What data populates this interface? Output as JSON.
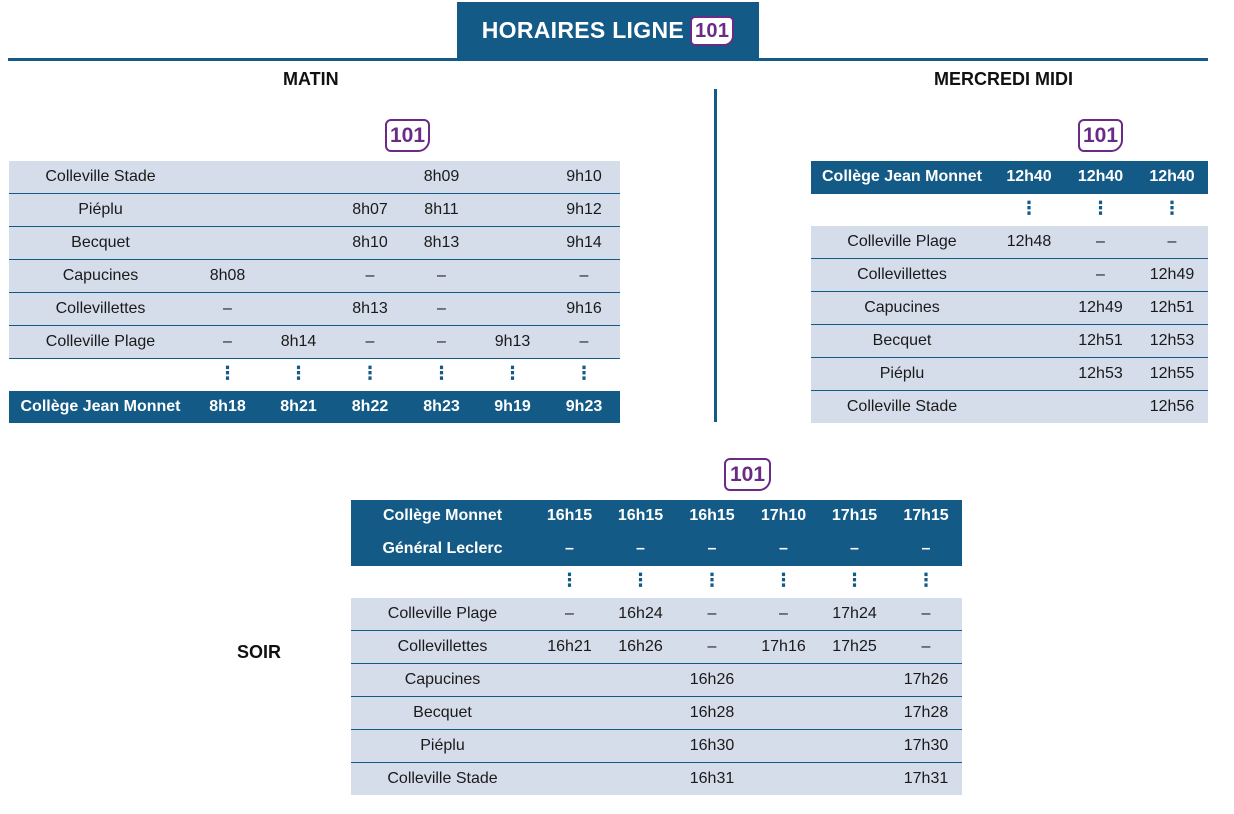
{
  "header": {
    "title": "HORAIRES LIGNE",
    "line": "101"
  },
  "matin": {
    "title": "MATIN",
    "badge": "101",
    "rows": [
      {
        "type": "light",
        "stop": "Colleville Stade",
        "times": [
          "",
          "",
          "",
          "8h09",
          "",
          "9h10"
        ]
      },
      {
        "type": "light",
        "stop": "Piéplu",
        "times": [
          "",
          "",
          "8h07",
          "8h11",
          "",
          "9h12"
        ]
      },
      {
        "type": "light",
        "stop": "Becquet",
        "times": [
          "",
          "",
          "8h10",
          "8h13",
          "",
          "9h14"
        ]
      },
      {
        "type": "light",
        "stop": "Capucines",
        "times": [
          "8h08",
          "",
          "–",
          "–",
          "",
          "–"
        ]
      },
      {
        "type": "light",
        "stop": "Collevillettes",
        "times": [
          "–",
          "",
          "8h13",
          "–",
          "",
          "9h16"
        ]
      },
      {
        "type": "light",
        "stop": "Colleville Plage",
        "times": [
          "–",
          "8h14",
          "–",
          "–",
          "9h13",
          "–"
        ]
      },
      {
        "type": "dots",
        "stop": "",
        "times": [
          "⋮",
          "⋮",
          "⋮",
          "⋮",
          "⋮",
          "⋮"
        ]
      },
      {
        "type": "dark",
        "stop": "Collège Jean Monnet",
        "times": [
          "8h18",
          "8h21",
          "8h22",
          "8h23",
          "9h19",
          "9h23"
        ]
      }
    ]
  },
  "mercredi": {
    "title": "MERCREDI MIDI",
    "badge": "101",
    "rows": [
      {
        "type": "dark",
        "stop": "Collège Jean Monnet",
        "times": [
          "12h40",
          "12h40",
          "12h40"
        ]
      },
      {
        "type": "dots",
        "stop": "",
        "times": [
          "⋮",
          "⋮",
          "⋮"
        ]
      },
      {
        "type": "light",
        "stop": "Colleville Plage",
        "times": [
          "12h48",
          "–",
          "–"
        ]
      },
      {
        "type": "light",
        "stop": "Collevillettes",
        "times": [
          "",
          "–",
          "12h49"
        ]
      },
      {
        "type": "light",
        "stop": "Capucines",
        "times": [
          "",
          "12h49",
          "12h51"
        ]
      },
      {
        "type": "light",
        "stop": "Becquet",
        "times": [
          "",
          "12h51",
          "12h53"
        ]
      },
      {
        "type": "light",
        "stop": "Piéplu",
        "times": [
          "",
          "12h53",
          "12h55"
        ]
      },
      {
        "type": "light",
        "stop": "Colleville Stade",
        "times": [
          "",
          "",
          "12h56"
        ]
      }
    ]
  },
  "soir": {
    "title": "SOIR",
    "badge": "101",
    "rows": [
      {
        "type": "dark",
        "stop": "Collège Monnet",
        "times": [
          "16h15",
          "16h15",
          "16h15",
          "17h10",
          "17h15",
          "17h15"
        ]
      },
      {
        "type": "dark",
        "stop": "Général Leclerc",
        "times": [
          "–",
          "–",
          "–",
          "–",
          "–",
          "–"
        ]
      },
      {
        "type": "dots",
        "stop": "",
        "times": [
          "⋮",
          "⋮",
          "⋮",
          "⋮",
          "⋮",
          "⋮"
        ]
      },
      {
        "type": "light",
        "stop": "Colleville Plage",
        "times": [
          "–",
          "16h24",
          "–",
          "–",
          "17h24",
          "–"
        ]
      },
      {
        "type": "light",
        "stop": "Collevillettes",
        "times": [
          "16h21",
          "16h26",
          "–",
          "17h16",
          "17h25",
          "–"
        ]
      },
      {
        "type": "light",
        "stop": "Capucines",
        "times": [
          "",
          "",
          "16h26",
          "",
          "",
          "17h26"
        ]
      },
      {
        "type": "light",
        "stop": "Becquet",
        "times": [
          "",
          "",
          "16h28",
          "",
          "",
          "17h28"
        ]
      },
      {
        "type": "light",
        "stop": "Piéplu",
        "times": [
          "",
          "",
          "16h30",
          "",
          "",
          "17h30"
        ]
      },
      {
        "type": "light",
        "stop": "Colleville Stade",
        "times": [
          "",
          "",
          "16h31",
          "",
          "",
          "17h31"
        ]
      }
    ]
  }
}
